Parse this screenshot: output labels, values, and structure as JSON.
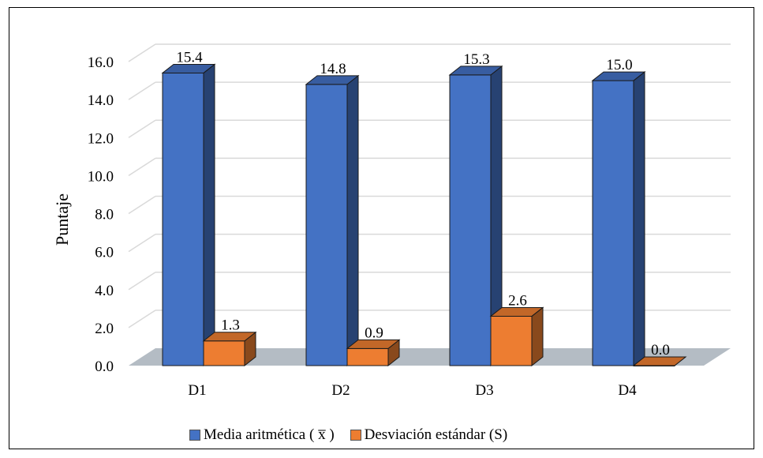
{
  "chart_data": {
    "type": "bar",
    "categories": [
      "D1",
      "D2",
      "D3",
      "D4"
    ],
    "series": [
      {
        "name": "Media aritmética ( x̅ )",
        "values": [
          15.4,
          14.8,
          15.3,
          15.0
        ],
        "color": "#4472C4"
      },
      {
        "name": "Desviación estándar (S)",
        "values": [
          1.3,
          0.9,
          2.6,
          0.0
        ],
        "color": "#ED7D31"
      }
    ],
    "data_labels": [
      [
        "15.4",
        "14.8",
        "15.3",
        "15.0"
      ],
      [
        "1.3",
        "0.9",
        "2.6",
        "0.0"
      ]
    ],
    "ylabel": "Puntaje",
    "xlabel": "",
    "yticks": [
      "0.0",
      "2.0",
      "4.0",
      "6.0",
      "8.0",
      "10.0",
      "12.0",
      "14.0",
      "16.0"
    ],
    "ylim": [
      0,
      16
    ],
    "grid": true,
    "legend": "bottom",
    "style": "3d"
  }
}
